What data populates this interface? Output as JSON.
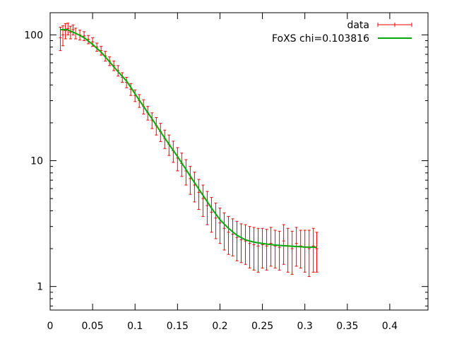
{
  "chart_data": {
    "type": "scatter",
    "title": "",
    "xlabel": "",
    "ylabel": "",
    "x_ticks": [
      "0",
      "0.05",
      "0.1",
      "0.15",
      "0.2",
      "0.25",
      "0.3",
      "0.35",
      "0.4"
    ],
    "y_ticks": [
      "1",
      "10",
      "100"
    ],
    "xlim": [
      0,
      0.445
    ],
    "ylim": [
      0.65,
      150
    ],
    "y_scale": "log",
    "grid": false,
    "legend_position": "top-right",
    "series": [
      {
        "name": "data",
        "style": "points-with-errorbars",
        "color": "#ff0000",
        "x": [
          0.012,
          0.015,
          0.018,
          0.021,
          0.024,
          0.027,
          0.03,
          0.035,
          0.04,
          0.045,
          0.05,
          0.055,
          0.06,
          0.065,
          0.07,
          0.075,
          0.08,
          0.085,
          0.09,
          0.095,
          0.1,
          0.105,
          0.11,
          0.115,
          0.12,
          0.125,
          0.13,
          0.135,
          0.14,
          0.145,
          0.15,
          0.155,
          0.16,
          0.165,
          0.17,
          0.175,
          0.18,
          0.185,
          0.19,
          0.195,
          0.2,
          0.205,
          0.21,
          0.215,
          0.22,
          0.225,
          0.23,
          0.235,
          0.24,
          0.245,
          0.25,
          0.255,
          0.26,
          0.265,
          0.27,
          0.275,
          0.28,
          0.285,
          0.29,
          0.295,
          0.3,
          0.305,
          0.31,
          0.314
        ],
        "y": [
          95,
          100,
          108,
          112,
          105,
          110,
          103,
          100,
          98,
          92,
          88,
          80,
          75,
          68,
          62,
          57,
          52,
          46,
          42,
          37,
          33,
          30,
          27,
          24,
          21,
          19,
          17,
          15,
          13.5,
          12,
          10.5,
          9.5,
          8.3,
          7.2,
          6.4,
          5.6,
          5,
          4.4,
          3.9,
          3.5,
          3.2,
          2.9,
          2.7,
          2.6,
          2.45,
          2.35,
          2.3,
          2.2,
          2.15,
          2.1,
          2.15,
          2.1,
          2.2,
          2.1,
          2.05,
          2.3,
          2.1,
          2.0,
          2.2,
          2.1,
          2.05,
          2.0,
          2.1,
          2.0
        ],
        "err": [
          20,
          18,
          15,
          12,
          12,
          10,
          10,
          9,
          8,
          7,
          7,
          6,
          6,
          6,
          5,
          5,
          5,
          4,
          4,
          4,
          3.5,
          3.5,
          3.5,
          3,
          3,
          3,
          2.8,
          2.5,
          2.5,
          2.3,
          2.2,
          2.0,
          1.9,
          1.8,
          1.7,
          1.5,
          1.4,
          1.3,
          1.2,
          1.1,
          1.0,
          0.95,
          0.9,
          0.85,
          0.85,
          0.8,
          0.8,
          0.8,
          0.8,
          0.8,
          0.75,
          0.75,
          0.75,
          0.7,
          0.7,
          0.8,
          0.8,
          0.75,
          0.75,
          0.7,
          0.75,
          0.8,
          0.8,
          0.7
        ]
      },
      {
        "name": "FoXS chi=0.103816",
        "style": "line",
        "color": "#00aa00",
        "x": [
          0.012,
          0.02,
          0.03,
          0.04,
          0.05,
          0.06,
          0.07,
          0.08,
          0.09,
          0.1,
          0.11,
          0.12,
          0.13,
          0.14,
          0.15,
          0.16,
          0.17,
          0.18,
          0.19,
          0.2,
          0.21,
          0.22,
          0.23,
          0.24,
          0.25,
          0.26,
          0.27,
          0.28,
          0.29,
          0.3,
          0.314
        ],
        "y": [
          110,
          110,
          103,
          95,
          84,
          73,
          61,
          51,
          43,
          34,
          27,
          21.5,
          17,
          13.5,
          10.8,
          8.5,
          6.7,
          5.3,
          4.2,
          3.4,
          2.9,
          2.55,
          2.35,
          2.25,
          2.2,
          2.15,
          2.12,
          2.1,
          2.08,
          2.06,
          2.05
        ]
      }
    ]
  }
}
